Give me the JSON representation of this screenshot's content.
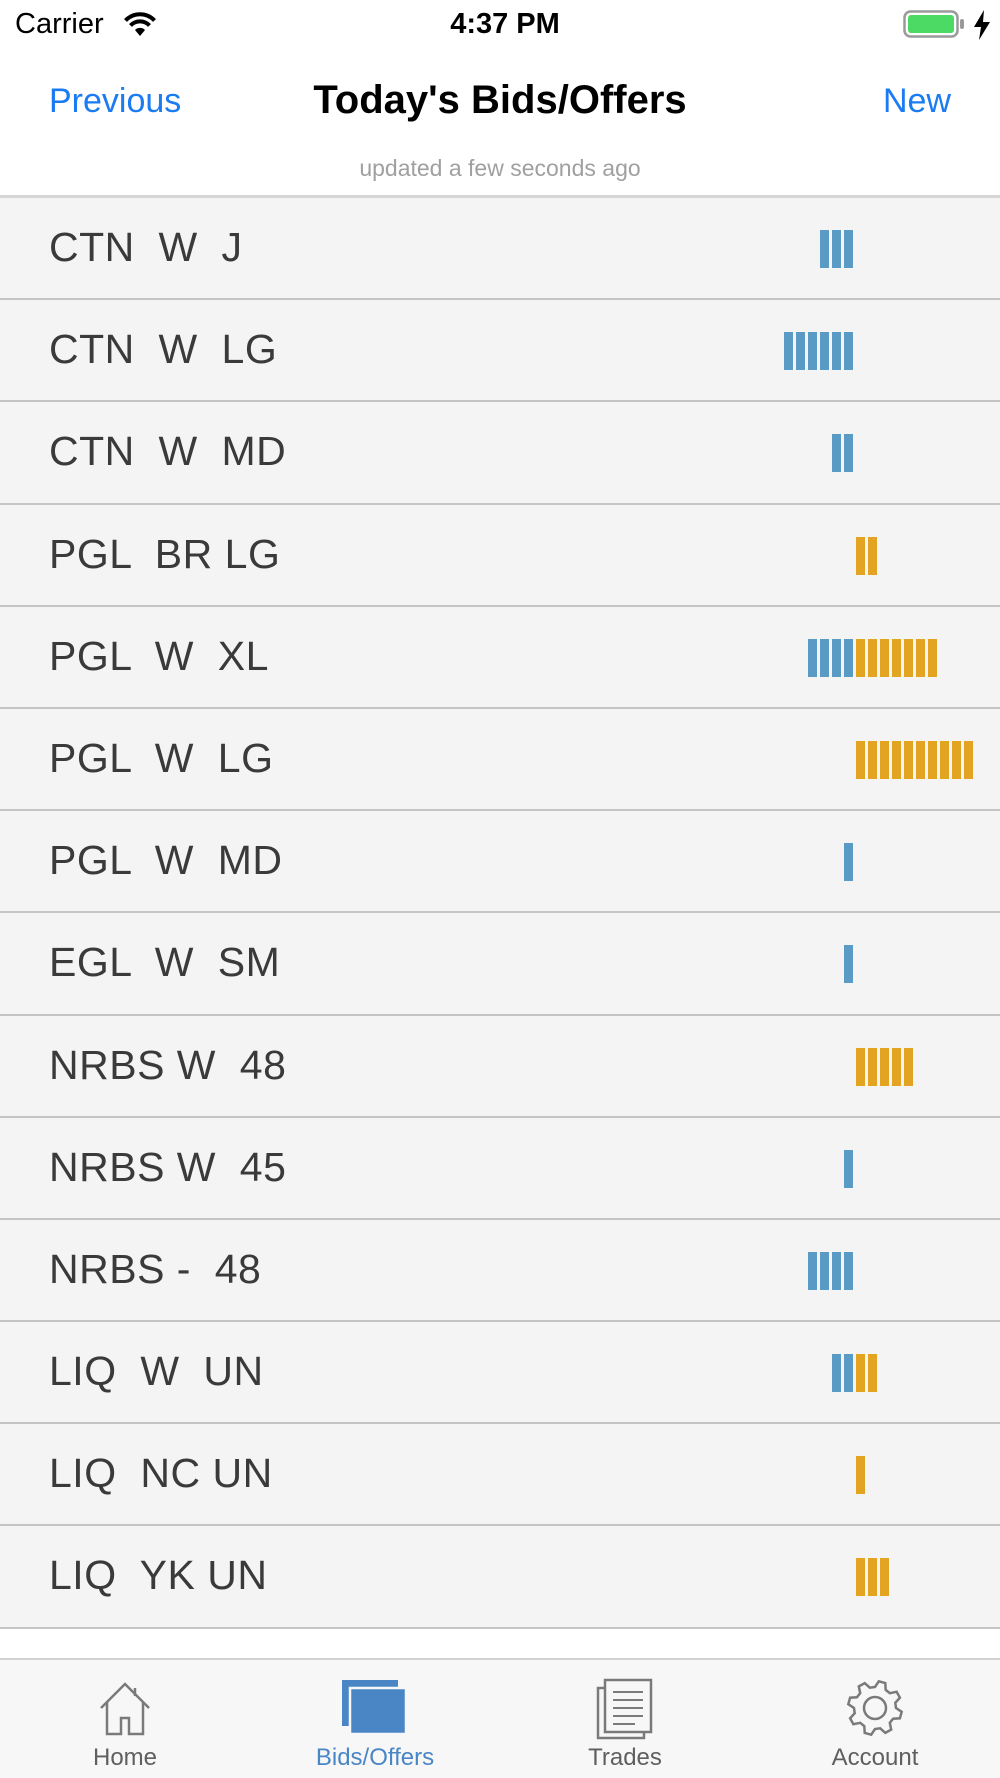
{
  "status": {
    "carrier": "Carrier",
    "time": "4:37 PM"
  },
  "nav": {
    "previous": "Previous",
    "title": "Today's Bids/Offers",
    "new": "New",
    "updated": "updated a few seconds ago"
  },
  "colors": {
    "bid": "#5a9bc5",
    "offer": "#e3a422",
    "link": "#1a7bf2",
    "active_tab": "#4a86c5"
  },
  "rows": [
    {
      "label": "CTN  W  J",
      "bids": 3,
      "offers": 0
    },
    {
      "label": "CTN  W  LG",
      "bids": 6,
      "offers": 0
    },
    {
      "label": "CTN  W  MD",
      "bids": 2,
      "offers": 0
    },
    {
      "label": "PGL  BR LG",
      "bids": 0,
      "offers": 2
    },
    {
      "label": "PGL  W  XL",
      "bids": 4,
      "offers": 7
    },
    {
      "label": "PGL  W  LG",
      "bids": 0,
      "offers": 10
    },
    {
      "label": "PGL  W  MD",
      "bids": 1,
      "offers": 0
    },
    {
      "label": "EGL  W  SM",
      "bids": 1,
      "offers": 0
    },
    {
      "label": "NRBS W  48",
      "bids": 0,
      "offers": 5
    },
    {
      "label": "NRBS W  45",
      "bids": 1,
      "offers": 0
    },
    {
      "label": "NRBS -  48",
      "bids": 4,
      "offers": 0
    },
    {
      "label": "LIQ  W  UN",
      "bids": 2,
      "offers": 2
    },
    {
      "label": "LIQ  NC UN",
      "bids": 0,
      "offers": 1
    },
    {
      "label": "LIQ  YK UN",
      "bids": 0,
      "offers": 3
    }
  ],
  "tabs": [
    {
      "label": "Home",
      "icon": "home-icon"
    },
    {
      "label": "Bids/Offers",
      "icon": "bids-offers-icon",
      "active": true
    },
    {
      "label": "Trades",
      "icon": "trades-icon"
    },
    {
      "label": "Account",
      "icon": "gear-icon"
    }
  ]
}
